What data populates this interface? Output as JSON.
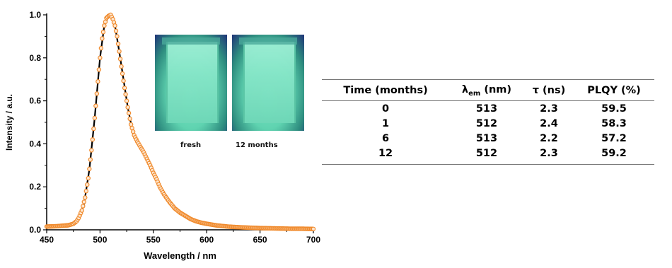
{
  "chart_data": {
    "type": "scatter",
    "xlabel": "Wavelength / nm",
    "ylabel": "Intensity / a.u.",
    "xlim": [
      450,
      700
    ],
    "ylim": [
      0,
      1.0
    ],
    "xticks": [
      "450",
      "500",
      "550",
      "600",
      "650",
      "700"
    ],
    "yticks": [
      "0.0",
      "0.2",
      "0.4",
      "0.6",
      "0.8",
      "1.0"
    ],
    "grid": false,
    "series": [
      {
        "color": "#f08a2c",
        "style": "open-circle-markers",
        "x": [
          450,
          455,
          460,
          465,
          470,
          475,
          478,
          480,
          483,
          486,
          489,
          492,
          495,
          498,
          500,
          502,
          504,
          506,
          508,
          510,
          511,
          512,
          514,
          516,
          518,
          520,
          523,
          526,
          529,
          532,
          535,
          538,
          541,
          544,
          547,
          550,
          553,
          556,
          560,
          565,
          570,
          575,
          580,
          585,
          590,
          595,
          600,
          610,
          620,
          630,
          640,
          650,
          660,
          670,
          680,
          690,
          700
        ],
        "values": [
          0.015,
          0.016,
          0.017,
          0.019,
          0.021,
          0.028,
          0.04,
          0.055,
          0.09,
          0.15,
          0.24,
          0.37,
          0.52,
          0.69,
          0.8,
          0.89,
          0.95,
          0.985,
          0.995,
          1.0,
          0.99,
          0.98,
          0.95,
          0.9,
          0.83,
          0.76,
          0.66,
          0.57,
          0.49,
          0.44,
          0.41,
          0.385,
          0.36,
          0.33,
          0.3,
          0.265,
          0.235,
          0.2,
          0.165,
          0.13,
          0.1,
          0.08,
          0.065,
          0.05,
          0.04,
          0.033,
          0.028,
          0.02,
          0.015,
          0.012,
          0.01,
          0.008,
          0.007,
          0.006,
          0.005,
          0.005,
          0.004
        ]
      },
      {
        "color": "#000000",
        "style": "line",
        "x": [
          450,
          460,
          470,
          475,
          480,
          485,
          490,
          495,
          500,
          504,
          508,
          511,
          514,
          518,
          522,
          526,
          530,
          535
        ],
        "values": [
          0.015,
          0.017,
          0.021,
          0.028,
          0.055,
          0.12,
          0.28,
          0.52,
          0.8,
          0.95,
          0.995,
          1.0,
          0.95,
          0.83,
          0.7,
          0.57,
          0.47,
          0.41
        ]
      }
    ]
  },
  "inset": {
    "label_fresh": "fresh",
    "label_12": "12 months"
  },
  "table": {
    "headers": {
      "time": "Time (months)",
      "lambda_sym": "λ",
      "lambda_sub": "em",
      "lambda_unit": " (nm)",
      "tau": "τ (ns)",
      "plqy": "PLQY (%)"
    },
    "rows": [
      [
        "0",
        "513",
        "2.3",
        "59.5"
      ],
      [
        "1",
        "512",
        "2.4",
        "58.3"
      ],
      [
        "6",
        "513",
        "2.2",
        "57.2"
      ],
      [
        "12",
        "512",
        "2.3",
        "59.2"
      ]
    ]
  }
}
